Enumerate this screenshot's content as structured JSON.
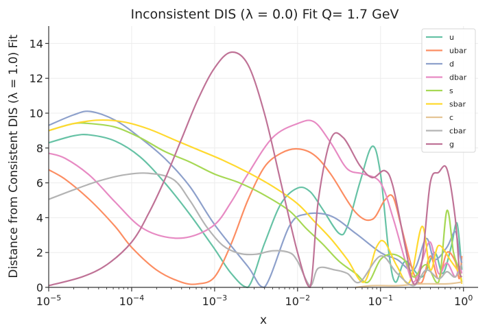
{
  "chart_data": {
    "type": "line",
    "title": "Inconsistent DIS (λ = 0.0) Fit Q= 1.7 GeV",
    "xlabel": "x",
    "ylabel": "Distance from Consistent DIS (λ = 1.0) Fit",
    "xscale": "log",
    "xlim": [
      1e-05,
      1.5
    ],
    "ylim": [
      0,
      15
    ],
    "yticks": [
      0,
      2,
      4,
      6,
      8,
      10,
      12,
      14
    ],
    "xticks": [
      1e-05,
      0.0001,
      0.001,
      0.01,
      0.1,
      1
    ],
    "xtick_labels": [
      {
        "base": "10",
        "exp": "−5"
      },
      {
        "base": "10",
        "exp": "−4"
      },
      {
        "base": "10",
        "exp": "−3"
      },
      {
        "base": "10",
        "exp": "−2"
      },
      {
        "base": "10",
        "exp": "−1"
      },
      {
        "base": "10",
        "exp": "0"
      }
    ],
    "grid": true,
    "legend_position": "top-right",
    "series": [
      {
        "name": "u",
        "color": "#66c2a5",
        "points": [
          [
            -5,
            8.3
          ],
          [
            -4.7,
            8.7
          ],
          [
            -4.5,
            8.75
          ],
          [
            -4.2,
            8.4
          ],
          [
            -3.9,
            7.5
          ],
          [
            -3.6,
            6.0
          ],
          [
            -3.3,
            4.2
          ],
          [
            -3.0,
            2.2
          ],
          [
            -2.8,
            0.8
          ],
          [
            -2.6,
            0.0
          ],
          [
            -2.4,
            2.5
          ],
          [
            -2.2,
            4.8
          ],
          [
            -2.0,
            5.7
          ],
          [
            -1.85,
            5.5
          ],
          [
            -1.7,
            4.5
          ],
          [
            -1.5,
            3.1
          ],
          [
            -1.4,
            3.5
          ],
          [
            -1.25,
            6.0
          ],
          [
            -1.1,
            8.1
          ],
          [
            -1.0,
            6.5
          ],
          [
            -0.9,
            2.0
          ],
          [
            -0.82,
            0.3
          ],
          [
            -0.7,
            1.5
          ],
          [
            -0.5,
            0.6
          ],
          [
            -0.35,
            2.0
          ],
          [
            -0.25,
            0.8
          ],
          [
            -0.15,
            2.3
          ],
          [
            -0.08,
            3.7
          ],
          [
            -0.03,
            1.6
          ],
          [
            -0.02,
            1.0
          ]
        ]
      },
      {
        "name": "ubar",
        "color": "#fc8d62",
        "points": [
          [
            -5,
            6.75
          ],
          [
            -4.8,
            6.2
          ],
          [
            -4.5,
            5.0
          ],
          [
            -4.2,
            3.5
          ],
          [
            -4.0,
            2.3
          ],
          [
            -3.7,
            1.0
          ],
          [
            -3.4,
            0.3
          ],
          [
            -3.2,
            0.2
          ],
          [
            -3.0,
            0.6
          ],
          [
            -2.8,
            2.5
          ],
          [
            -2.6,
            5.0
          ],
          [
            -2.4,
            6.9
          ],
          [
            -2.2,
            7.7
          ],
          [
            -2.0,
            7.95
          ],
          [
            -1.8,
            7.6
          ],
          [
            -1.6,
            6.5
          ],
          [
            -1.3,
            4.3
          ],
          [
            -1.1,
            3.9
          ],
          [
            -0.95,
            5.0
          ],
          [
            -0.85,
            5.2
          ],
          [
            -0.75,
            3.5
          ],
          [
            -0.6,
            0.8
          ],
          [
            -0.5,
            0.3
          ],
          [
            -0.4,
            1.8
          ],
          [
            -0.3,
            0.5
          ],
          [
            -0.2,
            2.0
          ],
          [
            -0.1,
            1.5
          ],
          [
            -0.05,
            0.5
          ],
          [
            -0.02,
            1.8
          ]
        ]
      },
      {
        "name": "d",
        "color": "#8da0cb",
        "points": [
          [
            -5,
            9.3
          ],
          [
            -4.7,
            9.9
          ],
          [
            -4.5,
            10.1
          ],
          [
            -4.2,
            9.6
          ],
          [
            -3.9,
            8.6
          ],
          [
            -3.6,
            7.4
          ],
          [
            -3.3,
            5.8
          ],
          [
            -3.0,
            3.6
          ],
          [
            -2.6,
            1.2
          ],
          [
            -2.4,
            0.0
          ],
          [
            -2.1,
            3.5
          ],
          [
            -1.9,
            4.2
          ],
          [
            -1.6,
            4.1
          ],
          [
            -1.3,
            3.1
          ],
          [
            -1.0,
            2.0
          ],
          [
            -0.8,
            1.6
          ],
          [
            -0.6,
            1.0
          ],
          [
            -0.45,
            2.8
          ],
          [
            -0.35,
            1.6
          ],
          [
            -0.2,
            2.3
          ],
          [
            -0.1,
            3.2
          ],
          [
            -0.05,
            2.0
          ],
          [
            -0.02,
            1.4
          ]
        ]
      },
      {
        "name": "dbar",
        "color": "#e78ac3",
        "points": [
          [
            -5,
            7.7
          ],
          [
            -4.8,
            7.4
          ],
          [
            -4.5,
            6.4
          ],
          [
            -4.2,
            4.9
          ],
          [
            -3.9,
            3.5
          ],
          [
            -3.6,
            2.9
          ],
          [
            -3.3,
            2.9
          ],
          [
            -3.0,
            3.6
          ],
          [
            -2.8,
            4.9
          ],
          [
            -2.6,
            6.5
          ],
          [
            -2.3,
            8.6
          ],
          [
            -2.0,
            9.4
          ],
          [
            -1.8,
            9.5
          ],
          [
            -1.6,
            8.3
          ],
          [
            -1.4,
            6.8
          ],
          [
            -1.2,
            6.5
          ],
          [
            -1.0,
            6.0
          ],
          [
            -0.85,
            4.0
          ],
          [
            -0.7,
            1.5
          ],
          [
            -0.6,
            0.3
          ],
          [
            -0.5,
            1.5
          ],
          [
            -0.4,
            2.6
          ],
          [
            -0.3,
            0.8
          ],
          [
            -0.2,
            1.4
          ],
          [
            -0.1,
            0.6
          ],
          [
            -0.05,
            1.2
          ],
          [
            -0.02,
            0.8
          ]
        ]
      },
      {
        "name": "s",
        "color": "#a6d854",
        "points": [
          [
            -5,
            9.0
          ],
          [
            -4.7,
            9.4
          ],
          [
            -4.5,
            9.4
          ],
          [
            -4.2,
            9.2
          ],
          [
            -3.9,
            8.6
          ],
          [
            -3.6,
            7.8
          ],
          [
            -3.3,
            7.2
          ],
          [
            -3.0,
            6.5
          ],
          [
            -2.7,
            6.0
          ],
          [
            -2.4,
            5.3
          ],
          [
            -2.1,
            4.4
          ],
          [
            -1.9,
            3.4
          ],
          [
            -1.7,
            2.5
          ],
          [
            -1.5,
            1.5
          ],
          [
            -1.3,
            0.8
          ],
          [
            -1.15,
            0.3
          ],
          [
            -1.0,
            1.6
          ],
          [
            -0.85,
            1.9
          ],
          [
            -0.7,
            1.5
          ],
          [
            -0.6,
            0.6
          ],
          [
            -0.45,
            1.3
          ],
          [
            -0.3,
            0.3
          ],
          [
            -0.2,
            4.4
          ],
          [
            -0.12,
            2.0
          ],
          [
            -0.05,
            1.0
          ],
          [
            -0.02,
            0.3
          ]
        ]
      },
      {
        "name": "sbar",
        "color": "#ffd92f",
        "points": [
          [
            -5,
            9.0
          ],
          [
            -4.7,
            9.4
          ],
          [
            -4.4,
            9.6
          ],
          [
            -4.1,
            9.5
          ],
          [
            -3.8,
            9.1
          ],
          [
            -3.5,
            8.5
          ],
          [
            -3.2,
            7.9
          ],
          [
            -2.9,
            7.3
          ],
          [
            -2.6,
            6.6
          ],
          [
            -2.3,
            5.8
          ],
          [
            -2.0,
            4.8
          ],
          [
            -1.8,
            3.8
          ],
          [
            -1.6,
            2.8
          ],
          [
            -1.4,
            1.6
          ],
          [
            -1.2,
            0.3
          ],
          [
            -1.05,
            2.3
          ],
          [
            -0.95,
            2.6
          ],
          [
            -0.8,
            1.2
          ],
          [
            -0.65,
            0.3
          ],
          [
            -0.5,
            3.5
          ],
          [
            -0.4,
            1.0
          ],
          [
            -0.3,
            2.4
          ],
          [
            -0.15,
            1.5
          ],
          [
            -0.05,
            0.8
          ],
          [
            -0.02,
            0.2
          ]
        ]
      },
      {
        "name": "c",
        "color": "#e5c494",
        "points": [
          [
            -1.3,
            0.0
          ],
          [
            -1.1,
            0.1
          ],
          [
            -0.8,
            0.1
          ],
          [
            -0.5,
            0.2
          ],
          [
            -0.2,
            0.2
          ],
          [
            -0.02,
            0.3
          ]
        ]
      },
      {
        "name": "cbar",
        "color": "#b3b3b3",
        "points": [
          [
            -5,
            5.05
          ],
          [
            -4.7,
            5.6
          ],
          [
            -4.4,
            6.1
          ],
          [
            -4.1,
            6.45
          ],
          [
            -3.8,
            6.55
          ],
          [
            -3.5,
            6.2
          ],
          [
            -3.3,
            5.0
          ],
          [
            -3.1,
            3.5
          ],
          [
            -2.9,
            2.4
          ],
          [
            -2.7,
            1.95
          ],
          [
            -2.5,
            1.9
          ],
          [
            -2.3,
            2.1
          ],
          [
            -2.1,
            2.0
          ],
          [
            -2.0,
            1.5
          ],
          [
            -1.85,
            0.1
          ],
          [
            -1.75,
            1.1
          ],
          [
            -1.55,
            1.0
          ],
          [
            -1.4,
            0.8
          ],
          [
            -1.25,
            0.3
          ],
          [
            -1.0,
            1.8
          ],
          [
            -0.8,
            0.8
          ],
          [
            -0.6,
            0.1
          ],
          [
            -0.45,
            1.0
          ],
          [
            -0.3,
            0.5
          ],
          [
            -0.2,
            0.9
          ],
          [
            -0.1,
            0.6
          ],
          [
            -0.02,
            1.3
          ]
        ]
      },
      {
        "name": "g",
        "color": "#bf7296",
        "points": [
          [
            -5,
            0.1
          ],
          [
            -4.6,
            0.6
          ],
          [
            -4.3,
            1.3
          ],
          [
            -4.0,
            2.6
          ],
          [
            -3.8,
            4.2
          ],
          [
            -3.6,
            6.2
          ],
          [
            -3.4,
            8.5
          ],
          [
            -3.2,
            10.8
          ],
          [
            -3.0,
            12.6
          ],
          [
            -2.8,
            13.5
          ],
          [
            -2.6,
            12.8
          ],
          [
            -2.4,
            10.0
          ],
          [
            -2.2,
            6.0
          ],
          [
            -2.0,
            2.0
          ],
          [
            -1.85,
            0.0
          ],
          [
            -1.75,
            5.0
          ],
          [
            -1.6,
            8.5
          ],
          [
            -1.45,
            8.6
          ],
          [
            -1.25,
            7.0
          ],
          [
            -1.1,
            6.3
          ],
          [
            -0.95,
            6.7
          ],
          [
            -0.85,
            5.8
          ],
          [
            -0.7,
            2.3
          ],
          [
            -0.6,
            0.2
          ],
          [
            -0.5,
            1.5
          ],
          [
            -0.4,
            6.0
          ],
          [
            -0.3,
            6.6
          ],
          [
            -0.2,
            6.8
          ],
          [
            -0.1,
            4.0
          ],
          [
            -0.05,
            1.0
          ],
          [
            -0.02,
            0.6
          ]
        ]
      }
    ]
  }
}
